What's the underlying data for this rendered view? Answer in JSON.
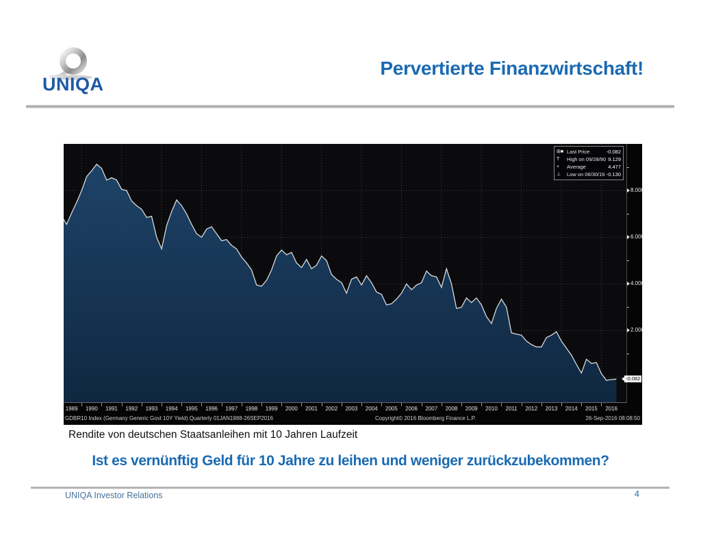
{
  "header": {
    "logo_text": "UNIQA",
    "logo_color": "#1c5aa6",
    "title": "Pervertierte Finanzwirtschaft!",
    "title_color": "#1a6ab3"
  },
  "chart": {
    "legend": {
      "rows": [
        {
          "marker": "last-price-square",
          "label": "Last Price",
          "value": "-0.082"
        },
        {
          "marker": "high-marker",
          "label": "High on 09/28/90",
          "value": "9.129"
        },
        {
          "marker": "average-marker",
          "label": "Average",
          "value": "4.477"
        },
        {
          "marker": "low-marker",
          "label": "Low on 06/30/16",
          "value": "-0.130"
        }
      ]
    },
    "y_axis": {
      "labels": [
        "8.000",
        "6.000",
        "4.000",
        "2.000"
      ],
      "label_values": [
        8,
        6,
        4,
        2
      ],
      "minor_tick_values": [
        9,
        7,
        5,
        3,
        1
      ],
      "last_price_tag": "-0.082",
      "last_price_value": -0.082
    },
    "x_axis": {
      "years": [
        "1989",
        "1990",
        "1991",
        "1992",
        "1993",
        "1994",
        "1995",
        "1996",
        "1997",
        "1998",
        "1999",
        "2000",
        "2001",
        "2002",
        "2003",
        "2004",
        "2005",
        "2006",
        "2007",
        "2008",
        "2009",
        "2010",
        "2011",
        "2012",
        "2013",
        "2014",
        "2015",
        "2016"
      ]
    },
    "info_bar": {
      "left": "GDBR10 Index (Germany Generic Govt 10Y Yield)  Quarterly 01JAN1988-26SEP2016",
      "center": "Copyright© 2016 Bloomberg Finance L.P.",
      "right": "26-Sep-2016 08:08:50"
    },
    "colors": {
      "background": "#0b0b0d",
      "area_top": "#1e4368",
      "area_bottom": "#0f2740",
      "line": "#d9dbde",
      "grid": "#45474b"
    }
  },
  "chart_data": {
    "type": "area",
    "title": "GDBR10 Index (Germany Generic Govt 10Y Yield)",
    "series_name": "Last Price",
    "x_unit": "year (quarterly data)",
    "x_start": 1989.0,
    "x_step": 0.25,
    "values": [
      6.9,
      6.55,
      7.05,
      7.5,
      8.0,
      8.6,
      8.85,
      9.129,
      8.95,
      8.45,
      8.55,
      8.45,
      8.05,
      8.0,
      7.55,
      7.35,
      7.2,
      6.85,
      6.9,
      6.0,
      5.5,
      6.5,
      7.1,
      7.6,
      7.35,
      7.0,
      6.55,
      6.15,
      6.0,
      6.35,
      6.45,
      6.15,
      5.85,
      5.9,
      5.65,
      5.5,
      5.15,
      4.9,
      4.6,
      3.95,
      3.9,
      4.15,
      4.6,
      5.2,
      5.45,
      5.25,
      5.35,
      4.9,
      4.7,
      5.05,
      4.65,
      4.8,
      5.2,
      5.0,
      4.4,
      4.2,
      4.05,
      3.6,
      4.2,
      4.3,
      3.95,
      4.35,
      4.05,
      3.65,
      3.55,
      3.1,
      3.15,
      3.35,
      3.6,
      4.0,
      3.75,
      3.95,
      4.05,
      4.55,
      4.35,
      4.3,
      3.85,
      4.65,
      4.0,
      2.95,
      3.0,
      3.4,
      3.2,
      3.4,
      3.1,
      2.6,
      2.3,
      2.95,
      3.35,
      3.0,
      1.9,
      1.85,
      1.8,
      1.55,
      1.4,
      1.3,
      1.3,
      1.7,
      1.8,
      1.95,
      1.55,
      1.25,
      0.95,
      0.55,
      0.18,
      0.77,
      0.59,
      0.63,
      0.15,
      -0.13,
      -0.1,
      -0.082
    ],
    "stats": {
      "last": -0.082,
      "high": 9.129,
      "high_date": "09/28/90",
      "average": 4.477,
      "low": -0.13,
      "low_date": "06/30/16"
    },
    "xlim": [
      1989.1,
      2017.25
    ],
    "ylim": [
      -1.1,
      10.0
    ],
    "y_gridlines": [
      8,
      6,
      4,
      2,
      0
    ],
    "x_gridline_years": [
      1990,
      1992,
      1994,
      1996,
      1998,
      2000,
      2002,
      2004,
      2006,
      2008,
      2010,
      2012,
      2014,
      2016
    ],
    "grid": "dotted",
    "legend_position": "top-right"
  },
  "caption": "Rendite von deutschen Staatsanleihen mit 10 Jahren Laufzeit",
  "question": "Ist es vernünftig Geld für 10 Jahre zu leihen und weniger zurückzubekommen?",
  "footer": {
    "left": "UNIQA Investor Relations",
    "page_number": "4"
  }
}
